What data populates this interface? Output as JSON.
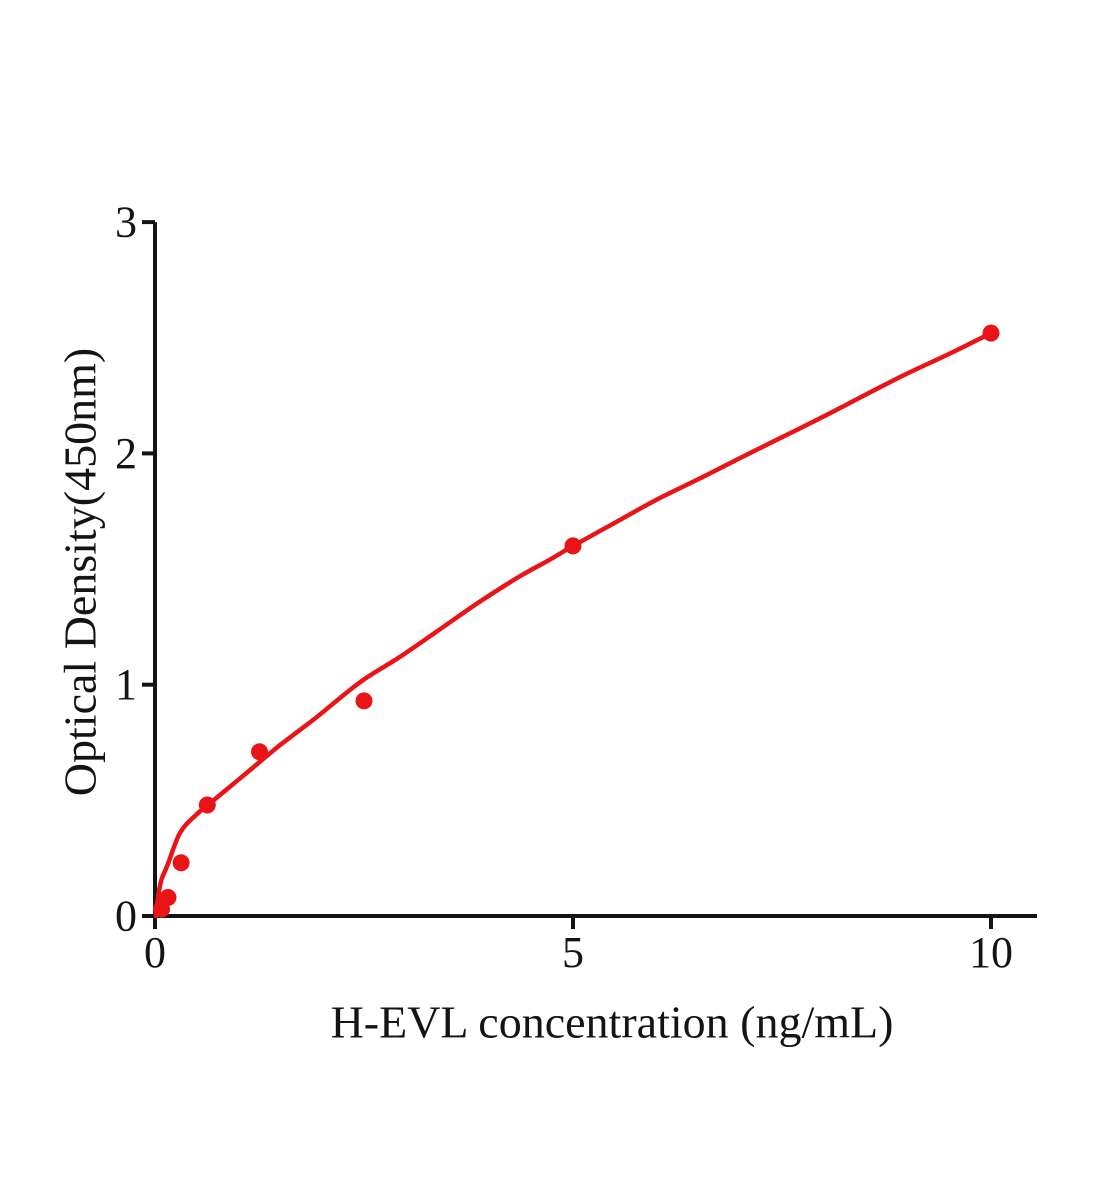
{
  "page": {
    "background_color": "#ffffff"
  },
  "chart_data": {
    "type": "scatter",
    "title": "",
    "xlabel": "H-EVL concentration (ng/mL)",
    "ylabel": "Optical Density(450nm)",
    "xlim": [
      0,
      10.55
    ],
    "ylim": [
      0,
      3
    ],
    "x_ticks": [
      0,
      5,
      10
    ],
    "y_ticks": [
      0,
      1,
      2,
      3
    ],
    "grid": false,
    "legend": false,
    "marker_color": "#e81418",
    "line_color": "#e81418",
    "axis_color": "#141414",
    "points": {
      "name": "H-EVL standards",
      "x": [
        0.078,
        0.156,
        0.3125,
        0.625,
        1.25,
        2.5,
        5,
        10
      ],
      "y": [
        0.03,
        0.08,
        0.23,
        0.48,
        0.71,
        0.93,
        1.6,
        2.52
      ]
    },
    "fit_curve": {
      "name": "fitted standard curve",
      "x": [
        0.012,
        0.04,
        0.08,
        0.15,
        0.3,
        0.5,
        0.7,
        0.9,
        1.1,
        1.5,
        1.9,
        2.45,
        2.93,
        3.41,
        3.89,
        4.37,
        4.72,
        5.0,
        5.5,
        6.0,
        6.51,
        7.0,
        7.5,
        8.0,
        8.91,
        9.5,
        10.0
      ],
      "y": [
        0.0,
        0.09,
        0.16,
        0.22,
        0.36,
        0.44,
        0.5,
        0.56,
        0.62,
        0.74,
        0.85,
        1.01,
        1.12,
        1.24,
        1.36,
        1.47,
        1.54,
        1.6,
        1.7,
        1.8,
        1.89,
        1.98,
        2.07,
        2.16,
        2.33,
        2.43,
        2.52
      ]
    }
  }
}
